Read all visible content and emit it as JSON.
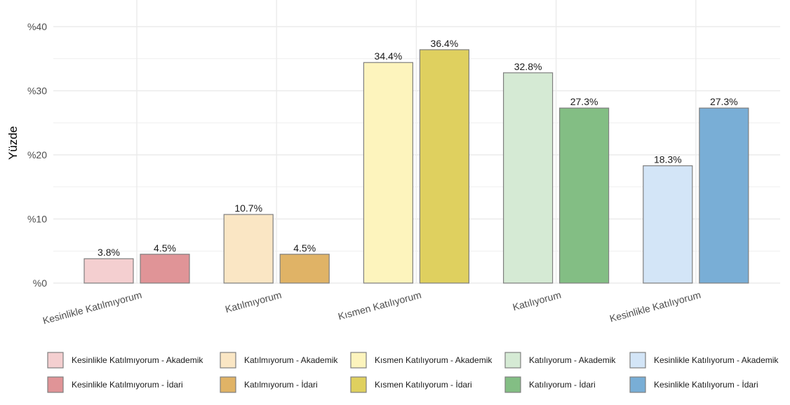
{
  "chart_data": {
    "type": "bar",
    "title": "",
    "xlabel": "",
    "ylabel": "Yüzde",
    "ylim": [
      0,
      40
    ],
    "yticks": [
      0,
      10,
      20,
      30,
      40
    ],
    "ytick_labels": [
      "%0",
      "%10",
      "%20",
      "%30",
      "%40"
    ],
    "grid": true,
    "legend_position": "bottom",
    "categories": [
      "Kesinlikle Katılmıyorum",
      "Katılmıyorum",
      "Kısmen Katılıyorum",
      "Katılıyorum",
      "Kesinlikle Katılıyorum"
    ],
    "series": [
      {
        "name": "Akademik",
        "values": [
          3.8,
          10.7,
          34.4,
          32.8,
          18.3
        ],
        "labels": [
          "3.8%",
          "10.7%",
          "34.4%",
          "32.8%",
          "18.3%"
        ],
        "colors": [
          "#f4cfd0",
          "#fae6c4",
          "#fdf4bd",
          "#d5ead4",
          "#d3e5f7"
        ]
      },
      {
        "name": "İdari",
        "values": [
          4.5,
          4.5,
          36.4,
          27.3,
          27.3
        ],
        "labels": [
          "4.5%",
          "4.5%",
          "36.4%",
          "27.3%",
          "27.3%"
        ],
        "colors": [
          "#e09497",
          "#e0b366",
          "#dfd05f",
          "#83be84",
          "#79aed6"
        ]
      }
    ],
    "legend": [
      [
        "Kesinlikle Katılmıyorum - Akademik",
        "Katılmıyorum - Akademik",
        "Kısmen Katılıyorum - Akademik",
        "Katılıyorum - Akademik",
        "Kesinlikle Katılıyorum - Akademik"
      ],
      [
        "Kesinlikle Katılmıyorum - İdari",
        "Katılmıyorum - İdari",
        "Kısmen Katılıyorum - İdari",
        "Katılıyorum - İdari",
        "Kesinlikle Katılıyorum - İdari"
      ]
    ],
    "colors": {
      "grid": "#ebebeb",
      "bar_border": "#7f7f7f"
    }
  }
}
